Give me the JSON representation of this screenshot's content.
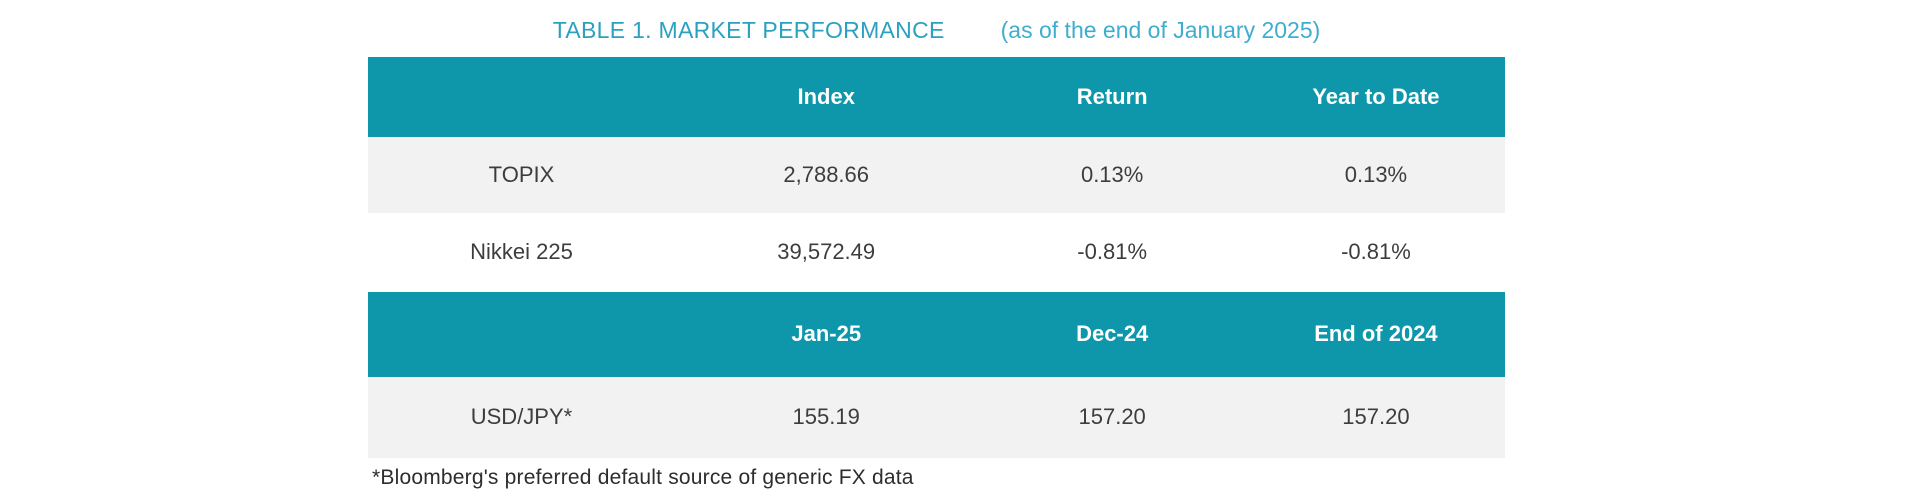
{
  "title": {
    "main": "TABLE 1. MARKET PERFORMANCE",
    "suffix": "(as of the end of January 2025)"
  },
  "colors": {
    "header_bg": "#0e96aa",
    "alt_row_bg": "#f2f2f2",
    "title_main": "#2ba1c0",
    "title_suffix": "#3fadce",
    "header_text": "#ffffff",
    "body_text": "#3d3d3d"
  },
  "index_table": {
    "headers": [
      "",
      "Index",
      "Return",
      "Year to Date"
    ],
    "rows": [
      {
        "label": "TOPIX",
        "index": "2,788.66",
        "return": "0.13%",
        "ytd": "0.13%"
      },
      {
        "label": "Nikkei 225",
        "index": "39,572.49",
        "return": "-0.81%",
        "ytd": "-0.81%"
      }
    ]
  },
  "fx_table": {
    "headers": [
      "",
      "Jan-25",
      "Dec-24",
      "End of 2024"
    ],
    "rows": [
      {
        "label": "USD/JPY*",
        "jan25": "155.19",
        "dec24": "157.20",
        "end_of_2024": "157.20"
      }
    ]
  },
  "footnote": "*Bloomberg's preferred default source of generic FX data"
}
